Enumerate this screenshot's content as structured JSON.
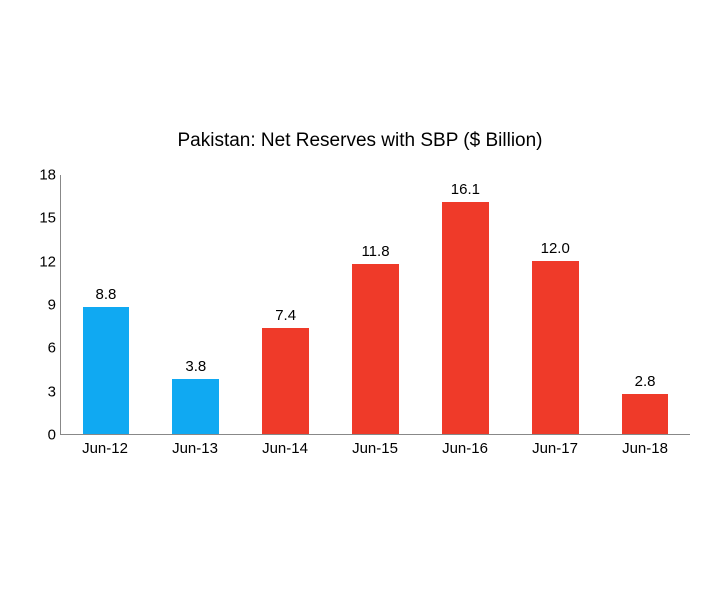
{
  "chart": {
    "type": "bar",
    "title": "Pakistan: Net Reserves with SBP ($ Billion)",
    "title_fontsize": 19,
    "categories": [
      "Jun-12",
      "Jun-13",
      "Jun-14",
      "Jun-15",
      "Jun-16",
      "Jun-17",
      "Jun-18"
    ],
    "values": [
      8.8,
      3.8,
      7.4,
      11.8,
      16.1,
      12.0,
      2.8
    ],
    "value_labels": [
      "8.8",
      "3.8",
      "7.4",
      "11.8",
      "16.1",
      "12.0",
      "2.8"
    ],
    "bar_colors": [
      "#10a9f2",
      "#10a9f2",
      "#ef3a29",
      "#ef3a29",
      "#ef3a29",
      "#ef3a29",
      "#ef3a29"
    ],
    "ylim": [
      0,
      18
    ],
    "yticks": [
      0,
      3,
      6,
      9,
      12,
      15,
      18
    ],
    "ytick_labels": [
      "0",
      "3",
      "6",
      "9",
      "12",
      "15",
      "18"
    ],
    "axis_color": "#888888",
    "background_color": "#ffffff",
    "label_fontsize": 15,
    "value_label_fontsize": 15,
    "xlabel_fontsize": 15,
    "bar_width": 0.52
  }
}
